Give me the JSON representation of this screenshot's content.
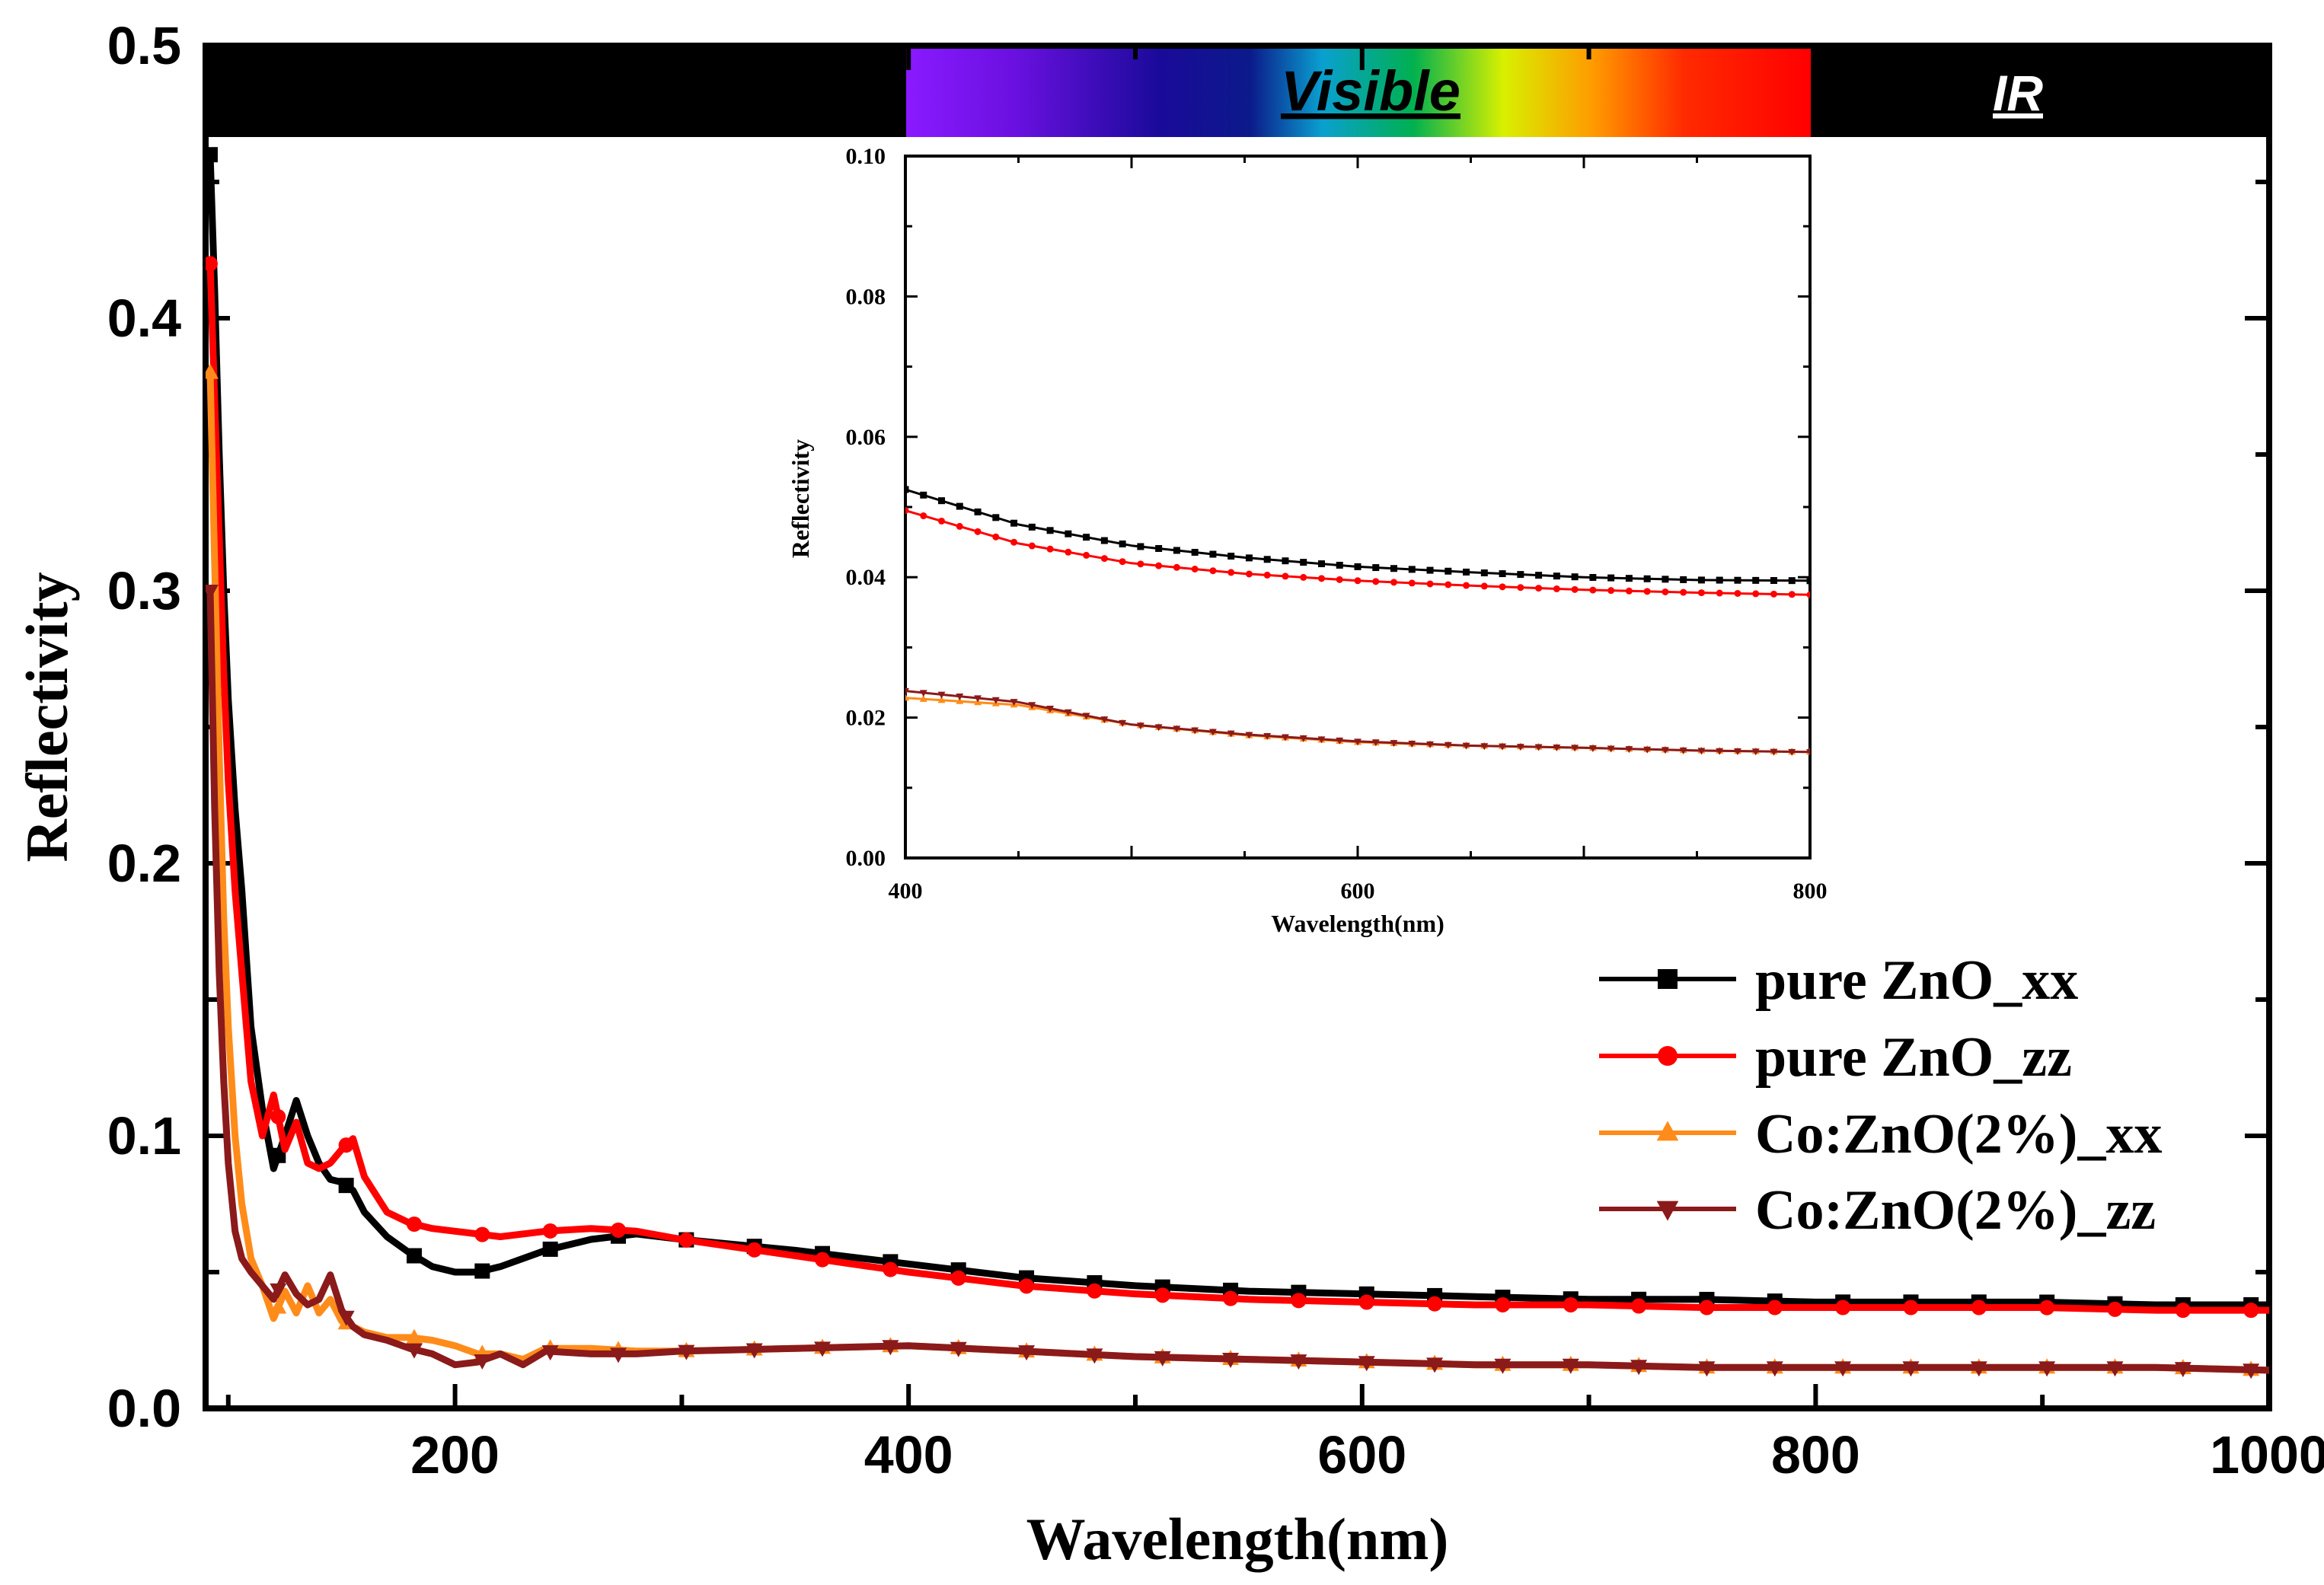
{
  "chart_data": {
    "type": "line",
    "xlabel": "Wavelength(nm)",
    "ylabel": "Reflectivity",
    "xlim": [
      90,
      1000
    ],
    "ylim": [
      0,
      0.5
    ],
    "xticks": [
      "200",
      "400",
      "600",
      "800",
      "1000"
    ],
    "yticks": [
      "0.0",
      "0.1",
      "0.2",
      "0.3",
      "0.4",
      "0.5"
    ],
    "legend_position": "right",
    "bands": [
      {
        "label": "Visible",
        "from": 400,
        "to": 800
      },
      {
        "label": "IR",
        "from": 800,
        "to": 1000
      }
    ],
    "series": [
      {
        "name": "pure ZnO_xx",
        "color": "#000000",
        "marker": "square",
        "x": [
          92,
          94,
          96,
          98,
          100,
          103,
          106,
          110,
          115,
          120,
          125,
          130,
          135,
          140,
          145,
          150,
          155,
          160,
          170,
          180,
          190,
          200,
          210,
          220,
          240,
          260,
          280,
          300,
          350,
          400,
          450,
          500,
          550,
          600,
          650,
          700,
          750,
          800,
          850,
          900,
          950,
          1000
        ],
        "y": [
          0.46,
          0.41,
          0.35,
          0.3,
          0.26,
          0.22,
          0.19,
          0.14,
          0.11,
          0.088,
          0.1,
          0.113,
          0.1,
          0.09,
          0.084,
          0.083,
          0.08,
          0.072,
          0.063,
          0.057,
          0.052,
          0.05,
          0.05,
          0.052,
          0.058,
          0.062,
          0.064,
          0.062,
          0.058,
          0.053,
          0.048,
          0.045,
          0.043,
          0.042,
          0.041,
          0.04,
          0.04,
          0.039,
          0.039,
          0.039,
          0.038,
          0.038
        ]
      },
      {
        "name": "pure ZnO_zz",
        "color": "#ff0000",
        "marker": "circle",
        "x": [
          92,
          94,
          96,
          98,
          100,
          103,
          106,
          110,
          115,
          120,
          125,
          130,
          135,
          140,
          145,
          150,
          155,
          160,
          170,
          180,
          190,
          200,
          210,
          220,
          240,
          260,
          280,
          300,
          350,
          400,
          450,
          500,
          550,
          600,
          650,
          700,
          750,
          800,
          850,
          900,
          950,
          1000
        ],
        "y": [
          0.42,
          0.37,
          0.32,
          0.27,
          0.23,
          0.19,
          0.16,
          0.12,
          0.1,
          0.115,
          0.095,
          0.105,
          0.09,
          0.088,
          0.09,
          0.095,
          0.099,
          0.085,
          0.072,
          0.068,
          0.066,
          0.065,
          0.064,
          0.063,
          0.065,
          0.066,
          0.065,
          0.062,
          0.056,
          0.05,
          0.045,
          0.042,
          0.04,
          0.039,
          0.038,
          0.038,
          0.037,
          0.037,
          0.037,
          0.037,
          0.036,
          0.036
        ]
      },
      {
        "name": "Co:ZnO(2%)_xx",
        "color": "#ff8c1a",
        "marker": "triangle-up",
        "x": [
          92,
          94,
          96,
          98,
          100,
          103,
          106,
          110,
          115,
          120,
          125,
          130,
          135,
          140,
          145,
          150,
          155,
          160,
          170,
          180,
          190,
          200,
          210,
          220,
          230,
          240,
          260,
          280,
          300,
          350,
          400,
          450,
          500,
          550,
          600,
          650,
          700,
          750,
          800,
          850,
          900,
          950,
          1000
        ],
        "y": [
          0.38,
          0.31,
          0.24,
          0.18,
          0.14,
          0.1,
          0.075,
          0.055,
          0.045,
          0.033,
          0.043,
          0.035,
          0.045,
          0.035,
          0.04,
          0.032,
          0.03,
          0.028,
          0.026,
          0.026,
          0.025,
          0.023,
          0.02,
          0.02,
          0.018,
          0.022,
          0.022,
          0.021,
          0.021,
          0.022,
          0.023,
          0.021,
          0.019,
          0.018,
          0.017,
          0.016,
          0.016,
          0.015,
          0.015,
          0.015,
          0.015,
          0.015,
          0.014
        ]
      },
      {
        "name": "Co:ZnO(2%)_zz",
        "color": "#8b1a1a",
        "marker": "triangle-down",
        "x": [
          92,
          94,
          96,
          98,
          100,
          103,
          106,
          110,
          115,
          120,
          125,
          130,
          135,
          140,
          145,
          150,
          155,
          160,
          170,
          180,
          190,
          200,
          210,
          220,
          230,
          240,
          260,
          280,
          300,
          350,
          400,
          450,
          500,
          550,
          600,
          650,
          700,
          750,
          800,
          850,
          900,
          950,
          1000
        ],
        "y": [
          0.3,
          0.22,
          0.16,
          0.12,
          0.09,
          0.065,
          0.055,
          0.05,
          0.045,
          0.04,
          0.049,
          0.042,
          0.038,
          0.04,
          0.049,
          0.036,
          0.03,
          0.027,
          0.025,
          0.022,
          0.02,
          0.016,
          0.017,
          0.02,
          0.016,
          0.021,
          0.02,
          0.02,
          0.021,
          0.022,
          0.023,
          0.021,
          0.019,
          0.018,
          0.017,
          0.016,
          0.016,
          0.015,
          0.015,
          0.015,
          0.015,
          0.015,
          0.014
        ]
      }
    ],
    "inset": {
      "xlabel": "Wavelength(nm)",
      "ylabel": "Reflectivity",
      "xlim": [
        400,
        800
      ],
      "ylim": [
        0,
        0.1
      ],
      "xticks": [
        "400",
        "600",
        "800"
      ],
      "yticks": [
        "0.00",
        "0.02",
        "0.04",
        "0.06",
        "0.08",
        "0.10"
      ],
      "series": [
        {
          "name": "pure ZnO_xx",
          "color": "#000000",
          "marker": "square",
          "x": [
            400,
            450,
            500,
            550,
            600,
            650,
            700,
            750,
            800
          ],
          "y": [
            0.0525,
            0.0475,
            0.0445,
            0.0428,
            0.0415,
            0.0407,
            0.04,
            0.0396,
            0.0395
          ]
        },
        {
          "name": "pure ZnO_zz",
          "color": "#ff0000",
          "marker": "circle",
          "x": [
            400,
            450,
            500,
            550,
            600,
            650,
            700,
            750,
            800
          ],
          "y": [
            0.0495,
            0.0448,
            0.042,
            0.0405,
            0.0395,
            0.0388,
            0.0382,
            0.0378,
            0.0375
          ]
        },
        {
          "name": "Co:ZnO(2%)_xx",
          "color": "#ff8c1a",
          "marker": "triangle-up",
          "x": [
            400,
            450,
            500,
            550,
            600,
            650,
            700,
            750,
            800
          ],
          "y": [
            0.0228,
            0.0218,
            0.019,
            0.0175,
            0.0165,
            0.016,
            0.0157,
            0.0153,
            0.0151
          ]
        },
        {
          "name": "Co:ZnO(2%)_zz",
          "color": "#8b1a1a",
          "marker": "triangle-down",
          "x": [
            400,
            450,
            500,
            550,
            600,
            650,
            700,
            750,
            800
          ],
          "y": [
            0.0238,
            0.0222,
            0.019,
            0.0176,
            0.0166,
            0.016,
            0.0157,
            0.0153,
            0.0151
          ]
        }
      ]
    }
  }
}
